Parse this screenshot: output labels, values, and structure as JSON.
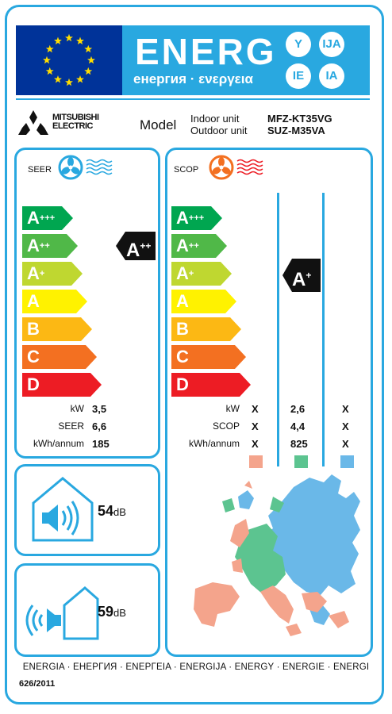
{
  "header": {
    "energ_word": "ENERG",
    "energ_subtitle": "енергия · ενεργεια",
    "languages": [
      "Y",
      "IJA",
      "IE",
      "IA"
    ],
    "colors": {
      "eu_blue": "#003399",
      "star_yellow": "#ffdd00",
      "label_blue": "#29a8e0"
    }
  },
  "model": {
    "brand_line1": "MITSUBISHI",
    "brand_line2": "ELECTRIC",
    "label": "Model",
    "indoor_label": "Indoor unit",
    "outdoor_label": "Outdoor unit",
    "indoor_value": "MFZ-KT35VG",
    "outdoor_value": "SUZ-M35VA"
  },
  "cooling": {
    "title": "SEER",
    "icon": "cooling-fan-icon",
    "classes": [
      {
        "base": "A",
        "sup": "+++",
        "color": "#00a650"
      },
      {
        "base": "A",
        "sup": "++",
        "color": "#50b848"
      },
      {
        "base": "A",
        "sup": "+",
        "color": "#bfd730"
      },
      {
        "base": "A",
        "sup": "",
        "color": "#fff200"
      },
      {
        "base": "B",
        "sup": "",
        "color": "#fcb814"
      },
      {
        "base": "C",
        "sup": "",
        "color": "#f37021"
      },
      {
        "base": "D",
        "sup": "",
        "color": "#ed1c24"
      }
    ],
    "rating": {
      "base": "A",
      "sup": "++"
    },
    "rows": [
      {
        "label": "kW",
        "value": "3,5"
      },
      {
        "label": "SEER",
        "value": "6,6"
      },
      {
        "label": "kWh/annum",
        "value": "185"
      }
    ]
  },
  "heating": {
    "title": "SCOP",
    "icon": "heating-fan-icon",
    "rating": {
      "base": "A",
      "sup": "+"
    },
    "rows": [
      {
        "label": "kW",
        "values": [
          "X",
          "2,6",
          "X"
        ]
      },
      {
        "label": "SCOP",
        "values": [
          "X",
          "4,4",
          "X"
        ]
      },
      {
        "label": "kWh/annum",
        "values": [
          "X",
          "825",
          "X"
        ]
      }
    ],
    "zone_colors": [
      "#f4a48c",
      "#5cc490",
      "#6ab8e8"
    ]
  },
  "noise": {
    "indoor": {
      "value": "54",
      "unit": "dB"
    },
    "outdoor": {
      "value": "59",
      "unit": "dB"
    }
  },
  "footer": {
    "languages": "ENERGIA · ЕНЕРГИЯ · ΕΝΕΡΓΕΙΑ · ENERGIJA · ENERGY · ENERGIE · ENERGI",
    "regulation": "626/2011"
  }
}
